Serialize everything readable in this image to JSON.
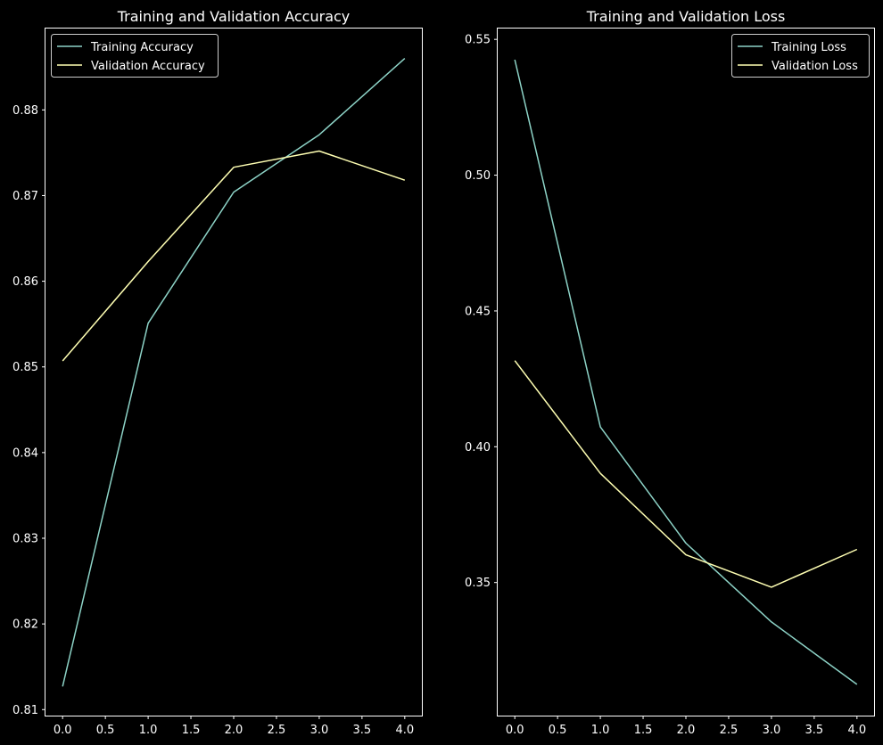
{
  "chart_data": [
    {
      "type": "line",
      "title": "Training and Validation Accuracy",
      "xlabel": "",
      "ylabel": "",
      "x": [
        0,
        1,
        2,
        3,
        4
      ],
      "series": [
        {
          "name": "Training Accuracy",
          "color": "#8dd3c7",
          "values": [
            0.8127,
            0.8551,
            0.8704,
            0.8771,
            0.886
          ]
        },
        {
          "name": "Validation Accuracy",
          "color": "#ffffb3",
          "values": [
            0.8507,
            0.8623,
            0.8733,
            0.8752,
            0.8718
          ]
        }
      ],
      "xlim": [
        -0.2,
        4.2
      ],
      "ylim": [
        0.8093,
        0.8895
      ],
      "xticks": [
        0,
        0.5,
        1,
        1.5,
        2,
        2.5,
        3,
        3.5,
        4
      ],
      "xtick_labels": [
        "0.0",
        "0.5",
        "1.0",
        "1.5",
        "2.0",
        "2.5",
        "3.0",
        "3.5",
        "4.0"
      ],
      "yticks": [
        0.81,
        0.82,
        0.83,
        0.84,
        0.85,
        0.86,
        0.87,
        0.88
      ],
      "ytick_labels": [
        "0.81",
        "0.82",
        "0.83",
        "0.84",
        "0.85",
        "0.86",
        "0.87",
        "0.88"
      ],
      "legend": "upper-left",
      "grid": false
    },
    {
      "type": "line",
      "title": "Training and Validation Loss",
      "xlabel": "",
      "ylabel": "",
      "x": [
        0,
        1,
        2,
        3,
        4
      ],
      "series": [
        {
          "name": "Training Loss",
          "color": "#8dd3c7",
          "values": [
            0.5425,
            0.4073,
            0.3645,
            0.3355,
            0.3125
          ]
        },
        {
          "name": "Validation Loss",
          "color": "#ffffb3",
          "values": [
            0.4317,
            0.3902,
            0.3602,
            0.3483,
            0.3622
          ]
        }
      ],
      "xlim": [
        -0.2,
        4.2
      ],
      "ylim": [
        0.301,
        0.554
      ],
      "xticks": [
        0,
        0.5,
        1,
        1.5,
        2,
        2.5,
        3,
        3.5,
        4
      ],
      "xtick_labels": [
        "0.0",
        "0.5",
        "1.0",
        "1.5",
        "2.0",
        "2.5",
        "3.0",
        "3.5",
        "4.0"
      ],
      "yticks": [
        0.35,
        0.4,
        0.45,
        0.5,
        0.55
      ],
      "ytick_labels": [
        "0.35",
        "0.40",
        "0.45",
        "0.50",
        "0.55"
      ],
      "legend": "upper-right",
      "grid": false
    }
  ]
}
